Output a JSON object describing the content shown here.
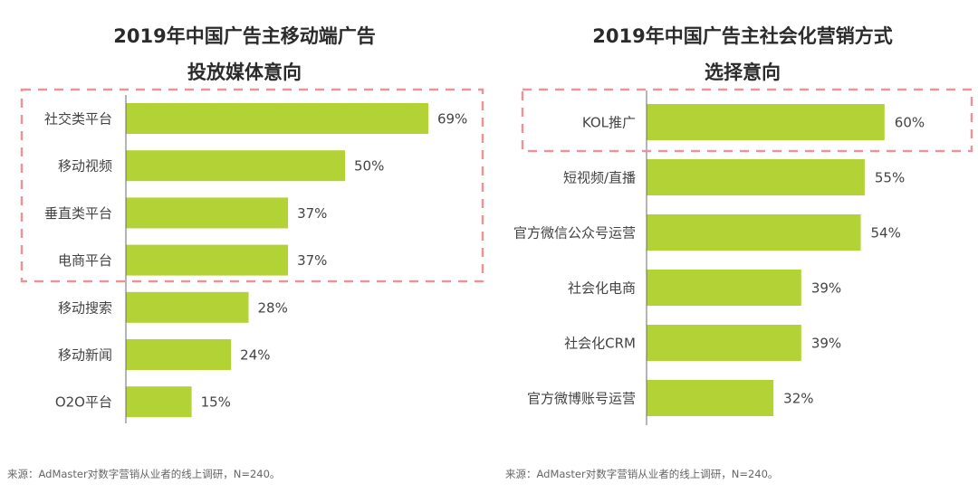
{
  "colors": {
    "bar": "#b2d235",
    "axis": "#6b6b6b",
    "highlight_box": "#e8959a",
    "text": "#444444"
  },
  "chart_data": [
    {
      "type": "bar",
      "orientation": "horizontal",
      "title": "2019年中国广告主移动端广告投放媒体意向",
      "title_lines": [
        "2019年中国广告主移动端广告",
        "投放媒体意向"
      ],
      "categories": [
        "社交类平台",
        "移动视频",
        "垂直类平台",
        "电商平台",
        "移动搜索",
        "移动新闻",
        "O2O平台"
      ],
      "values": [
        69,
        50,
        37,
        37,
        28,
        24,
        15
      ],
      "value_labels": [
        "69%",
        "50%",
        "37%",
        "37%",
        "28%",
        "24%",
        "15%"
      ],
      "unit": "%",
      "xlabel": "",
      "ylabel": "",
      "xlim": [
        0,
        100
      ],
      "grid": false,
      "legend": "none",
      "highlighted_categories": [
        "社交类平台",
        "移动视频",
        "垂直类平台",
        "电商平台"
      ],
      "source": "来源：AdMaster对数字营销从业者的线上调研，N=240。"
    },
    {
      "type": "bar",
      "orientation": "horizontal",
      "title": "2019年中国广告主社会化营销方式选择意向",
      "title_lines": [
        "2019年中国广告主社会化营销方式",
        "选择意向"
      ],
      "categories": [
        "KOL推广",
        "短视频/直播",
        "官方微信公众号运营",
        "社会化电商",
        "社会化CRM",
        "官方微博账号运营"
      ],
      "values": [
        60,
        55,
        54,
        39,
        39,
        32
      ],
      "value_labels": [
        "60%",
        "55%",
        "54%",
        "39%",
        "39%",
        "32%"
      ],
      "unit": "%",
      "xlabel": "",
      "ylabel": "",
      "xlim": [
        0,
        100
      ],
      "grid": false,
      "legend": "none",
      "highlighted_categories": [
        "KOL推广"
      ],
      "source": "来源：AdMaster对数字营销从业者的线上调研，N=240。"
    }
  ]
}
